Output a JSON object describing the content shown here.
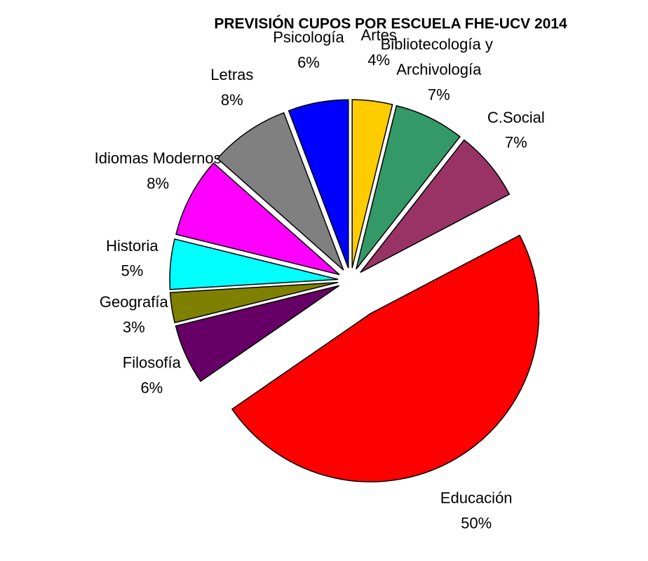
{
  "chart_data": {
    "type": "pie",
    "title": "PREVISIÓN CUPOS POR ESCUELA FHE-UCV 2014",
    "categories": [
      "Artes",
      "Bibliotecología y Archivología",
      "C.Social",
      "Educación",
      "Filosofía",
      "Geografía",
      "Historia",
      "Idiomas Modernos",
      "Letras",
      "Psicología"
    ],
    "values": [
      4,
      7,
      7,
      50,
      6,
      3,
      5,
      8,
      8,
      6
    ],
    "value_labels": [
      "4%",
      "7%",
      "7%",
      "50%",
      "6%",
      "3%",
      "5%",
      "8%",
      "8%",
      "6%"
    ],
    "colors": [
      "#ffcc00",
      "#339966",
      "#993366",
      "#ff0000",
      "#660066",
      "#808000",
      "#00ffff",
      "#ff00ff",
      "#808080",
      "#0000ff"
    ]
  }
}
